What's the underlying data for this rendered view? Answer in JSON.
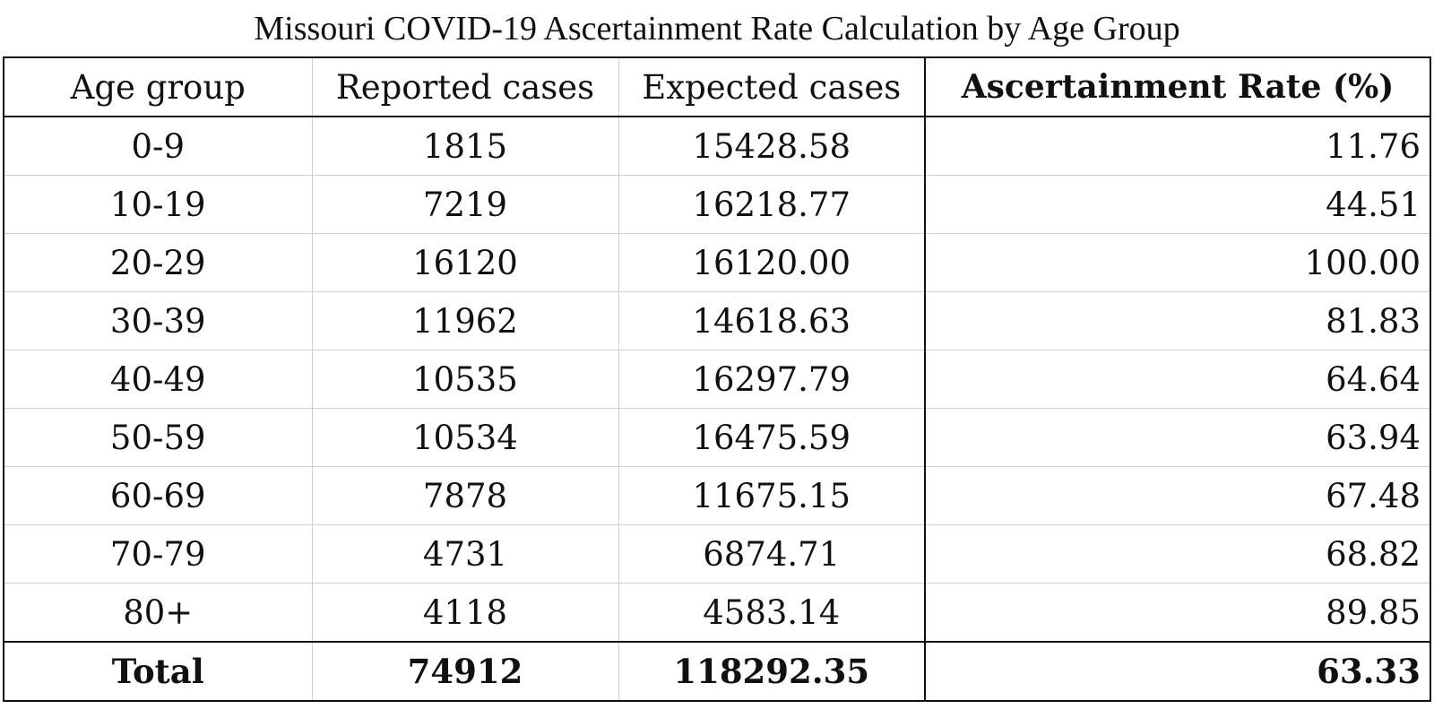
{
  "title": "Missouri COVID-19 Ascertainment Rate Calculation by Age Group",
  "columns": [
    "Age group",
    "Reported cases",
    "Expected cases",
    "Ascertainment Rate (%)"
  ],
  "rows": [
    {
      "age": "0-9",
      "reported": "1815",
      "expected": "15428.58",
      "rate": "11.76"
    },
    {
      "age": "10-19",
      "reported": "7219",
      "expected": "16218.77",
      "rate": "44.51"
    },
    {
      "age": "20-29",
      "reported": "16120",
      "expected": "16120.00",
      "rate": "100.00"
    },
    {
      "age": "30-39",
      "reported": "11962",
      "expected": "14618.63",
      "rate": "81.83"
    },
    {
      "age": "40-49",
      "reported": "10535",
      "expected": "16297.79",
      "rate": "64.64"
    },
    {
      "age": "50-59",
      "reported": "10534",
      "expected": "16475.59",
      "rate": "63.94"
    },
    {
      "age": "60-69",
      "reported": "7878",
      "expected": "11675.15",
      "rate": "67.48"
    },
    {
      "age": "70-79",
      "reported": "4731",
      "expected": "6874.71",
      "rate": "68.82"
    },
    {
      "age": "80+",
      "reported": "4118",
      "expected": "4583.14",
      "rate": "89.85"
    }
  ],
  "total": {
    "label": "Total",
    "reported": "74912",
    "expected": "118292.35",
    "rate": "63.33"
  }
}
